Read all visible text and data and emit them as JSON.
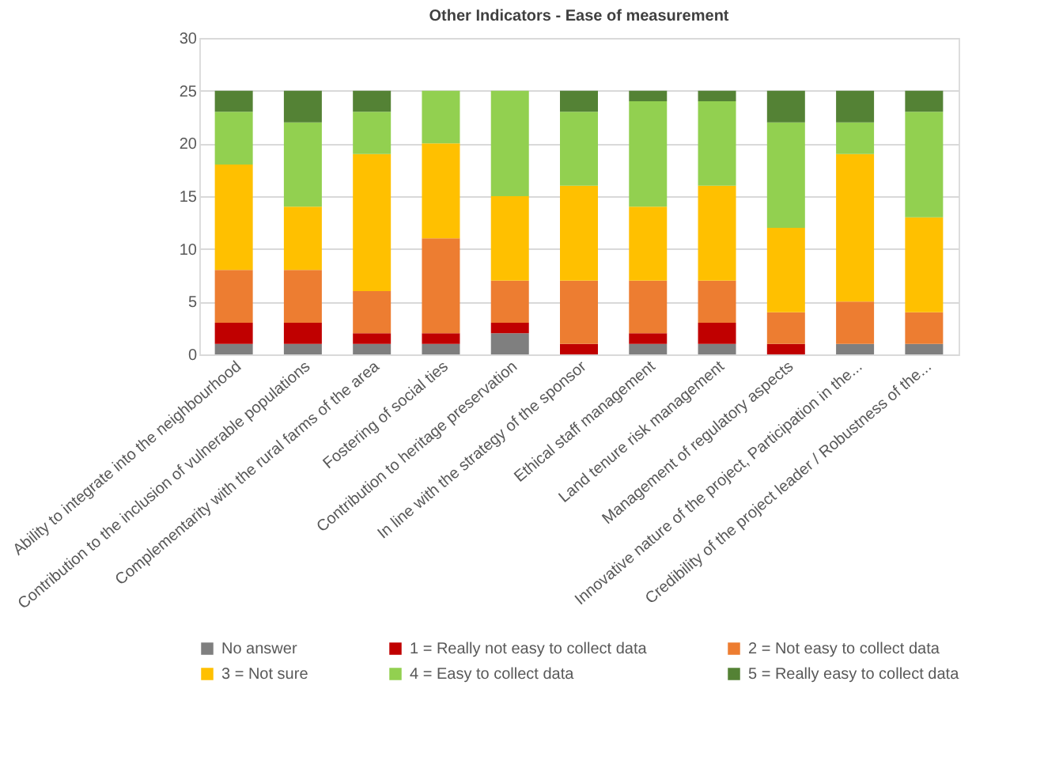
{
  "chart_data": {
    "type": "bar",
    "title": "Other Indicators - Ease of measurement",
    "stacked": true,
    "categories": [
      "Ability to integrate into the neighbourhood",
      "Contribution to the inclusion of vulnerable populations",
      "Complementarity with the rural farms of the area",
      "Fostering of social ties",
      "Contribution to heritage preservation",
      "In line with the strategy of the sponsor",
      "Ethical staff management",
      "Land tenure risk management",
      "Management of regulatory aspects",
      "Innovative nature of the project, Participation in the...",
      "Credibility of the project leader / Robustness of the..."
    ],
    "series": [
      {
        "name": "No answer",
        "color": "#7f7f7f",
        "values": [
          1,
          1,
          1,
          1,
          2,
          0,
          1,
          1,
          0,
          1,
          1
        ]
      },
      {
        "name": "1 = Really not easy to collect data",
        "color": "#c00000",
        "values": [
          2,
          2,
          1,
          1,
          1,
          1,
          1,
          2,
          1,
          0,
          0
        ]
      },
      {
        "name": "2 = Not easy to collect data",
        "color": "#ed7d31",
        "values": [
          5,
          5,
          4,
          9,
          4,
          6,
          5,
          4,
          3,
          4,
          3
        ]
      },
      {
        "name": "3 = Not sure",
        "color": "#ffc000",
        "values": [
          10,
          6,
          13,
          9,
          8,
          9,
          7,
          9,
          8,
          14,
          9
        ]
      },
      {
        "name": "4 = Easy to collect data",
        "color": "#92d050",
        "values": [
          5,
          8,
          4,
          5,
          10,
          7,
          10,
          8,
          10,
          3,
          10
        ]
      },
      {
        "name": "5 = Really easy to collect data",
        "color": "#548235",
        "values": [
          2,
          3,
          2,
          0,
          0,
          2,
          1,
          1,
          3,
          3,
          2
        ]
      }
    ],
    "ylim": [
      0,
      30
    ],
    "yticks": [
      0,
      5,
      10,
      15,
      20,
      25,
      30
    ],
    "grid": "y",
    "legend": "bottom"
  }
}
